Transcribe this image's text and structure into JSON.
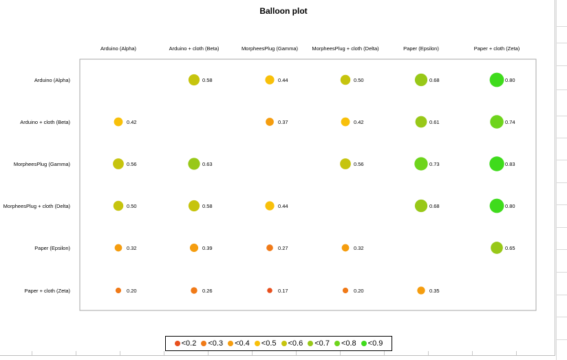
{
  "chart_data": {
    "type": "scatter",
    "subtype": "balloon",
    "title": "Balloon plot",
    "columns": [
      "Arduino (Alpha)",
      "Arduino + cloth (Beta)",
      "MorpheesPlug (Gamma)",
      "MorpheesPlug + cloth (Delta)",
      "Paper (Epsilon)",
      "Paper + cloth (Zeta)"
    ],
    "rows": [
      "Arduino (Alpha)",
      "Arduino + cloth (Beta)",
      "MorpheesPlug (Gamma)",
      "MorpheesPlug + cloth (Delta)",
      "Paper (Epsilon)",
      "Paper + cloth (Zeta)"
    ],
    "values": [
      [
        null,
        0.58,
        0.44,
        0.5,
        0.68,
        0.8
      ],
      [
        0.42,
        null,
        0.37,
        0.42,
        0.61,
        0.74
      ],
      [
        0.56,
        0.63,
        null,
        0.56,
        0.73,
        0.83
      ],
      [
        0.5,
        0.58,
        0.44,
        null,
        0.68,
        0.8
      ],
      [
        0.32,
        0.39,
        0.27,
        0.32,
        null,
        0.65
      ],
      [
        0.2,
        0.26,
        0.17,
        0.2,
        0.35,
        null
      ]
    ],
    "value_labels": [
      [
        "",
        "0.58",
        "0.44",
        "0.50",
        "0.68",
        "0.80"
      ],
      [
        "0.42",
        "",
        "0.37",
        "0.42",
        "0.61",
        "0.74"
      ],
      [
        "0.56",
        "0.63",
        "",
        "0.56",
        "0.73",
        "0.83"
      ],
      [
        "0.50",
        "0.58",
        "0.44",
        "",
        "0.68",
        "0.80"
      ],
      [
        "0.32",
        "0.39",
        "0.27",
        "0.32",
        "",
        "0.65"
      ],
      [
        "0.20",
        "0.26",
        "0.17",
        "0.20",
        "0.35",
        ""
      ]
    ],
    "legend": {
      "placement": "bottom",
      "items": [
        {
          "label": "<0.2",
          "color": "#e8501e"
        },
        {
          "label": "<0.3",
          "color": "#f07a18"
        },
        {
          "label": "<0.4",
          "color": "#f59d0f"
        },
        {
          "label": "<0.5",
          "color": "#f8c00a"
        },
        {
          "label": "<0.6",
          "color": "#c6c40e"
        },
        {
          "label": "<0.7",
          "color": "#98c818"
        },
        {
          "label": "<0.8",
          "color": "#6ed41c"
        },
        {
          "label": "<0.9",
          "color": "#3fdb1c"
        }
      ]
    },
    "grid": false
  }
}
